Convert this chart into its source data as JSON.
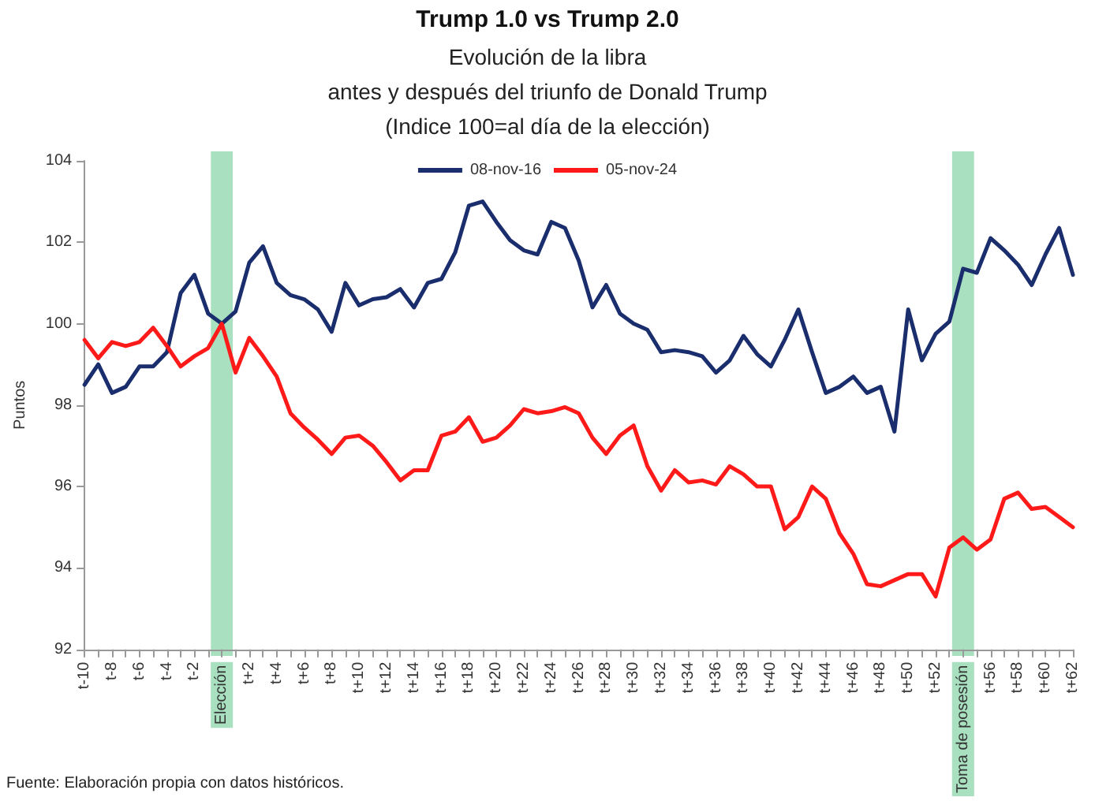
{
  "chart_data": {
    "type": "line",
    "title": "Trump 1.0 vs Trump 2.0",
    "subtitle": "Evolución de la libra\nantes y después del triunfo de Donald Trump\n(Indice 100=al día de la elección)",
    "ylabel": "Puntos",
    "annotations": [
      "Fuente: Elaboración propia con datos históricos."
    ],
    "categories": [
      "t-10",
      null,
      "t-8",
      null,
      "t-6",
      null,
      "t-4",
      null,
      "t-2",
      null,
      "Elección",
      null,
      "t+2",
      null,
      "t+4",
      null,
      "t+6",
      null,
      "t+8",
      null,
      "t+10",
      null,
      "t+12",
      null,
      "t+14",
      null,
      "t+16",
      null,
      "t+18",
      null,
      "t+20",
      null,
      "t+22",
      null,
      "t+24",
      null,
      "t+26",
      null,
      "t+28",
      null,
      "t+30",
      null,
      "t+32",
      null,
      "t+34",
      null,
      "t+36",
      null,
      "t+38",
      null,
      "t+40",
      null,
      "t+42",
      null,
      "t+44",
      null,
      "t+46",
      null,
      "t+48",
      null,
      "t+50",
      null,
      "t+52",
      null,
      "Toma de posesión",
      null,
      "t+56",
      null,
      "t+58",
      null,
      "t+60",
      null,
      "t+62"
    ],
    "series": [
      {
        "name": "08-nov-16",
        "color": "#1a2e6e",
        "values": [
          98.5,
          99.0,
          98.3,
          98.45,
          98.95,
          98.95,
          99.3,
          100.75,
          101.2,
          100.25,
          100.0,
          100.3,
          101.5,
          101.9,
          101.0,
          100.7,
          100.6,
          100.35,
          99.8,
          101.0,
          100.45,
          100.6,
          100.65,
          100.85,
          100.4,
          101.0,
          101.1,
          101.75,
          102.9,
          103.0,
          102.5,
          102.05,
          101.8,
          101.7,
          102.5,
          102.35,
          101.55,
          100.4,
          100.95,
          100.25,
          100.0,
          99.85,
          99.3,
          99.35,
          99.3,
          99.2,
          98.8,
          99.1,
          99.7,
          99.25,
          98.95,
          99.6,
          100.35,
          99.3,
          98.3,
          98.45,
          98.7,
          98.3,
          98.45,
          97.35,
          100.35,
          99.1,
          99.75,
          100.05,
          101.35,
          101.25,
          102.1,
          101.8,
          101.45,
          100.95,
          101.7,
          102.35,
          101.2
        ]
      },
      {
        "name": "05-nov-24",
        "color": "#ff1a1a",
        "values": [
          99.6,
          99.15,
          99.55,
          99.45,
          99.55,
          99.9,
          99.45,
          98.95,
          99.2,
          99.4,
          100.0,
          98.8,
          99.65,
          99.2,
          98.7,
          97.8,
          97.45,
          97.15,
          96.8,
          97.2,
          97.25,
          97.0,
          96.6,
          96.15,
          96.4,
          96.4,
          97.25,
          97.35,
          97.7,
          97.1,
          97.2,
          97.5,
          97.9,
          97.8,
          97.85,
          97.95,
          97.8,
          97.2,
          96.8,
          97.25,
          97.5,
          96.5,
          95.9,
          96.4,
          96.1,
          96.15,
          96.05,
          96.5,
          96.3,
          96.0,
          96.0,
          94.95,
          95.25,
          96.0,
          95.7,
          94.85,
          94.35,
          93.6,
          93.55,
          93.7,
          93.85,
          93.85,
          93.3,
          94.5,
          94.75,
          94.45,
          94.7,
          95.7,
          95.85,
          95.45,
          95.5,
          95.25,
          95.0
        ]
      }
    ],
    "ylim": [
      92,
      104
    ],
    "yticks": [
      92,
      94,
      96,
      98,
      100,
      102,
      104
    ],
    "bands": [
      {
        "axis": "x",
        "from": "Elección",
        "to": "Elección",
        "color": "#a8e0c0"
      },
      {
        "axis": "x",
        "from": "Toma de posesión",
        "to": "Toma de posesión",
        "color": "#a8e0c0"
      }
    ],
    "legend": "top",
    "grid": false,
    "marker": "none",
    "line_style": "solid"
  }
}
